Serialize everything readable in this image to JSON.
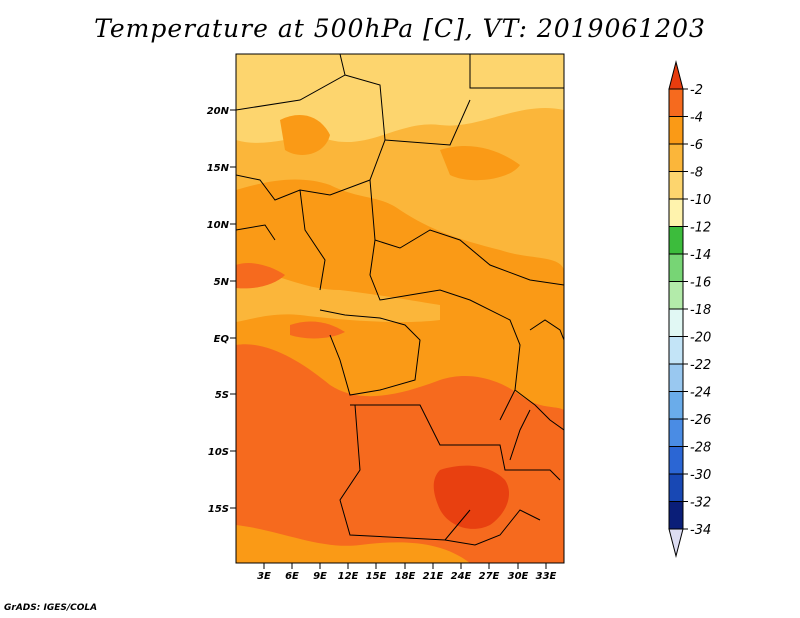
{
  "title": "Temperature at 500hPa [C], VT: 2019061203",
  "credit": "GrADS: IGES/COLA",
  "map": {
    "lat_labels": [
      "20N",
      "15N",
      "10N",
      "5N",
      "EQ",
      "5S",
      "10S",
      "15S"
    ],
    "lon_labels": [
      "3E",
      "6E",
      "9E",
      "12E",
      "15E",
      "18E",
      "21E",
      "24E",
      "27E",
      "30E",
      "33E"
    ],
    "fill_colors": {
      "t_m2_m4": "#f66a1e",
      "t_m4_m6": "#fa9a16",
      "t_m6_m8": "#fbb63a",
      "t_m8_m10": "#fdd56e",
      "t_above_m2": "#e84010"
    }
  },
  "colorbar": {
    "labels": [
      "-2",
      "-4",
      "-6",
      "-8",
      "-10",
      "-12",
      "-14",
      "-16",
      "-18",
      "-20",
      "-22",
      "-24",
      "-26",
      "-28",
      "-30",
      "-32",
      "-34"
    ],
    "colors": [
      "#e83c0e",
      "#f66a1e",
      "#fa9a16",
      "#fbb63a",
      "#fdd56e",
      "#fff3ad",
      "#3cbc3c",
      "#77d575",
      "#b3ebaa",
      "#e1f8f4",
      "#c3e4f7",
      "#99c8f0",
      "#6aacea",
      "#4a8ce4",
      "#2b66d4",
      "#1848b4",
      "#0a1e78",
      "#dcdcf2"
    ]
  }
}
